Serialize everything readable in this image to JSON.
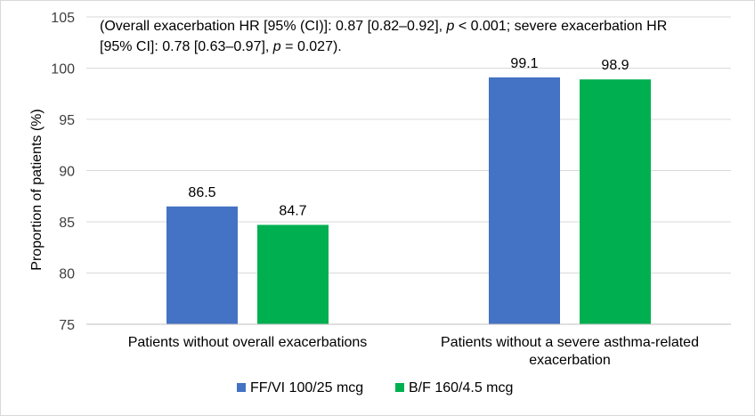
{
  "chart_data": {
    "type": "bar",
    "title": "",
    "xlabel": "",
    "ylabel": "Proportion of patients (%)",
    "ylim": [
      75,
      105
    ],
    "yticks": [
      75,
      80,
      85,
      90,
      95,
      100,
      105
    ],
    "categories": [
      [
        "Patients without overall exacerbations"
      ],
      [
        "Patients without a severe asthma-related",
        "exacerbation"
      ]
    ],
    "series": [
      {
        "name": "FF/VI 100/25 mcg",
        "color": "#4472c4",
        "values": [
          86.5,
          99.1
        ]
      },
      {
        "name": "B/F 160/4.5 mcg",
        "color": "#00b050",
        "values": [
          84.7,
          98.9
        ]
      }
    ],
    "grid": true,
    "legend": "bottom",
    "annotation": {
      "line1_a": "(Overall exacerbation HR [95% (CI)]: 0.87 [0.82–0.92], ",
      "line1_p": "p",
      "line1_b": " < 0.001; severe exacerbation HR",
      "line2_a": "[95% CI]: 0.78 [0.63–0.97], ",
      "line2_p": "p",
      "line2_b": " = 0.027)."
    }
  }
}
